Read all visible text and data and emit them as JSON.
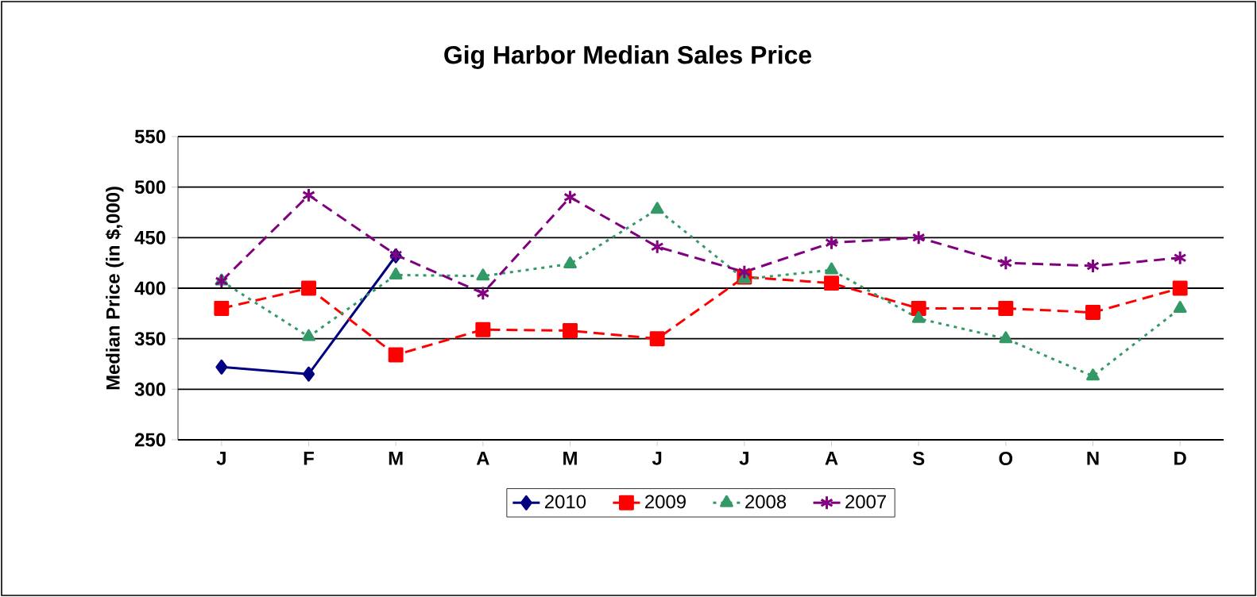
{
  "chart_data": {
    "type": "line",
    "title": "Gig Harbor Median Sales Price",
    "ylabel": "Median Price (in $,000)",
    "categories": [
      "J",
      "F",
      "M",
      "A",
      "M",
      "J",
      "J",
      "A",
      "S",
      "O",
      "N",
      "D"
    ],
    "series": [
      {
        "name": "2010",
        "color": "#000080",
        "marker": "diamond",
        "line_style": "solid",
        "values": [
          322,
          315,
          432,
          null,
          null,
          null,
          null,
          null,
          null,
          null,
          null,
          null
        ]
      },
      {
        "name": "2009",
        "color": "#ff0000",
        "marker": "square",
        "line_style": "dashed",
        "values": [
          380,
          400,
          334,
          359,
          358,
          350,
          411,
          405,
          380,
          380,
          376,
          400
        ]
      },
      {
        "name": "2008",
        "color": "#339966",
        "marker": "triangle",
        "line_style": "dotted",
        "values": [
          407,
          352,
          413,
          412,
          424,
          478,
          409,
          418,
          370,
          350,
          313,
          380
        ]
      },
      {
        "name": "2007",
        "color": "#800080",
        "marker": "cross",
        "line_style": "dashed",
        "values": [
          407,
          492,
          433,
          395,
          490,
          441,
          416,
          445,
          450,
          425,
          422,
          430
        ]
      }
    ],
    "ylim": [
      250,
      550
    ],
    "yticks": [
      250,
      300,
      350,
      400,
      450,
      500,
      550
    ],
    "grid": "y",
    "legend": "bottom"
  }
}
